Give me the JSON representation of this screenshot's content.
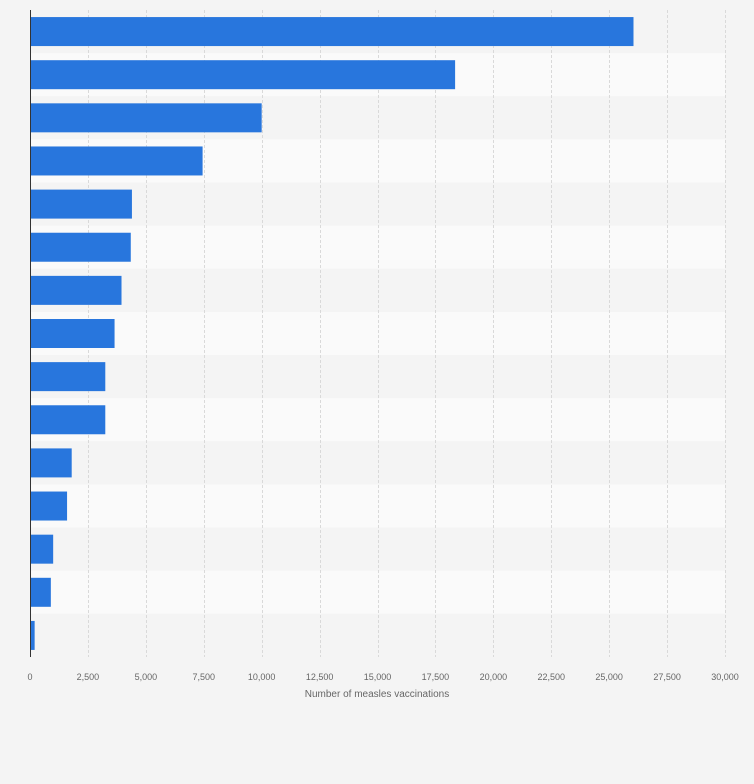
{
  "colors": {
    "background": "#f4f4f4",
    "band_light": "#fafafa",
    "band_dark": "#f4f4f4",
    "bar": "#2876dd",
    "grid": "#d9d9d9",
    "axis": "#333333",
    "tick_text": "#666666"
  },
  "chart_data": {
    "type": "bar",
    "orientation": "horizontal",
    "categories": [
      "",
      "",
      "",
      "",
      "",
      "",
      "",
      "",
      "",
      "",
      "",
      "",
      "",
      "",
      ""
    ],
    "values": [
      26050,
      18350,
      10000,
      7450,
      4400,
      4350,
      3950,
      3650,
      3250,
      3250,
      1800,
      1600,
      1000,
      900,
      200
    ],
    "xlabel": "Number of measles vaccinations",
    "xlim": [
      0,
      30000
    ],
    "xticks": [
      0,
      2500,
      5000,
      7500,
      10000,
      12500,
      15000,
      17500,
      20000,
      22500,
      25000,
      27500,
      30000
    ],
    "xtick_labels": [
      "0",
      "2,500",
      "5,000",
      "7,500",
      "10,000",
      "12,500",
      "15,000",
      "17,500",
      "20,000",
      "22,500",
      "25,000",
      "27,500",
      "30,000"
    ],
    "grid": true,
    "legend": "none"
  }
}
